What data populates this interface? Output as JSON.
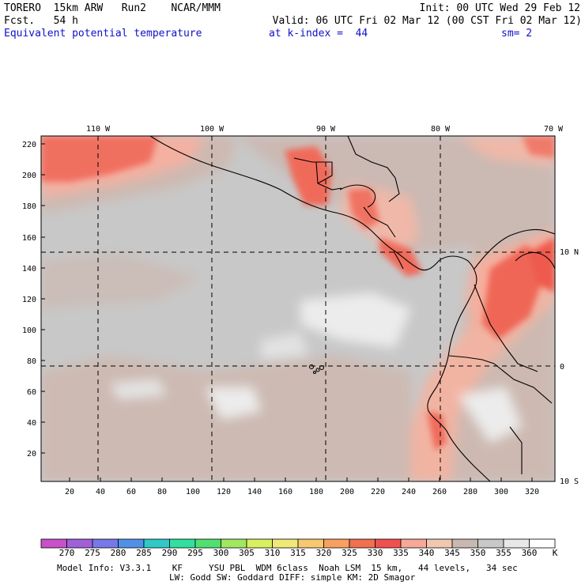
{
  "header": {
    "model": "TORERO  15km ARW   Run2    NCAR/MMM",
    "init": "Init: 00 UTC Wed 29 Feb 12",
    "fcst": "Fcst.   54 h",
    "valid": "Valid: 06 UTC Fri 02 Mar 12 (00 CST Fri 02 Mar 12)",
    "field": "Equivalent potential temperature",
    "level": "at k-index =  44",
    "smoothing": "sm= 2"
  },
  "map": {
    "lon_labels": [
      "110 W",
      "100 W",
      "90 W",
      "80 W",
      "70 W"
    ],
    "lat_labels": [
      "10 N",
      "0",
      "10 S"
    ],
    "y_ticks": [
      "20",
      "40",
      "60",
      "80",
      "100",
      "120",
      "140",
      "160",
      "180",
      "200",
      "220"
    ],
    "x_ticks": [
      "20",
      "40",
      "60",
      "80",
      "100",
      "120",
      "140",
      "160",
      "180",
      "200",
      "220",
      "240",
      "260",
      "280",
      "300",
      "320"
    ]
  },
  "colorbar": {
    "unit": "K",
    "labels": [
      "270",
      "275",
      "280",
      "285",
      "290",
      "295",
      "300",
      "305",
      "310",
      "315",
      "320",
      "325",
      "330",
      "335",
      "340",
      "345",
      "350",
      "355",
      "360"
    ],
    "colors": [
      "#c850c8",
      "#a060d8",
      "#7878e8",
      "#5090e8",
      "#30c8c8",
      "#30e0a0",
      "#50e070",
      "#a0e860",
      "#d8f060",
      "#f0e878",
      "#f8c870",
      "#f8a060",
      "#f07050",
      "#f05050",
      "#f8a898",
      "#f0c8b0",
      "#c8b8b0",
      "#c8c8c8",
      "#e8e8e8",
      "#ffffff"
    ]
  },
  "footer": {
    "line1": "Model Info: V3.3.1    KF     YSU PBL  WDM 6class  Noah LSM  15 km,   44 levels,   34 sec",
    "line2": "LW: Godd SW: Goddard DIFF: simple KM: 2D Smagor"
  }
}
